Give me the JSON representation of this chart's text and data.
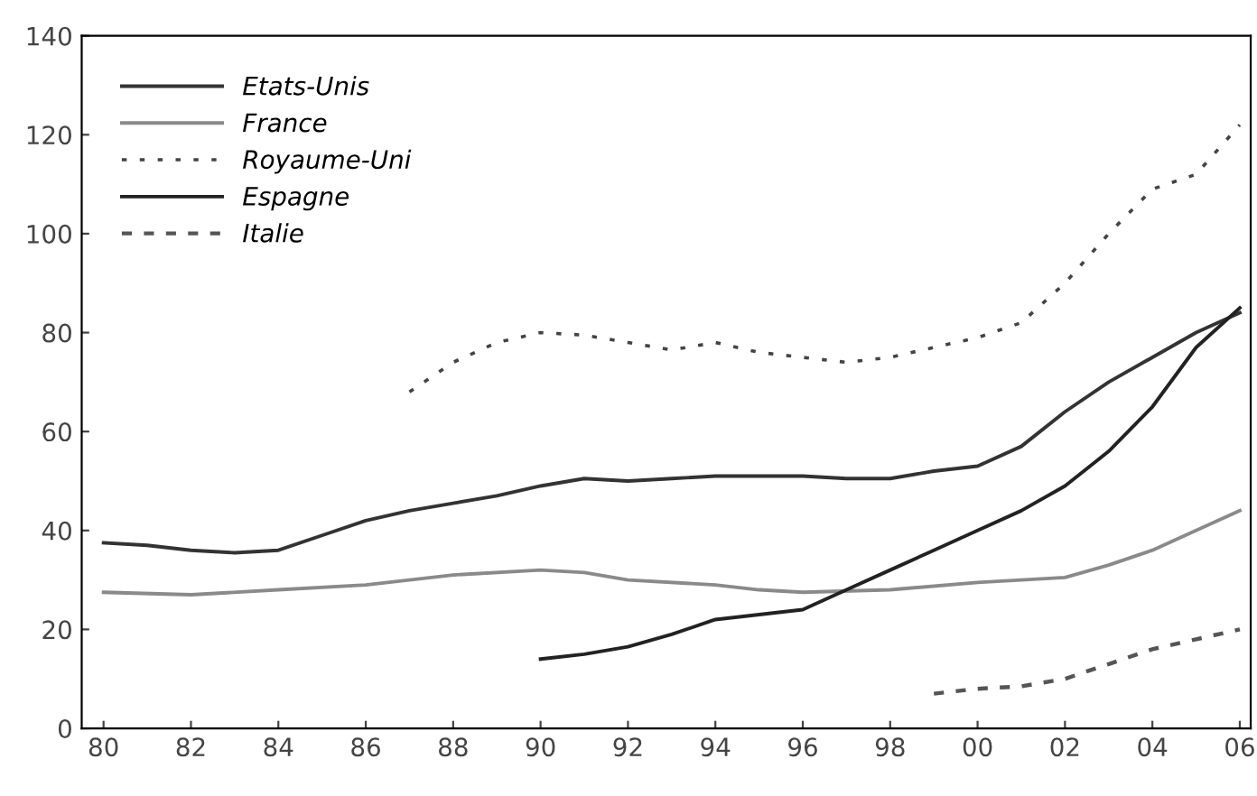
{
  "chart_data": {
    "type": "line",
    "x": [
      "1980",
      "1981",
      "1982",
      "1983",
      "1984",
      "1985",
      "1986",
      "1987",
      "1988",
      "1989",
      "1990",
      "1991",
      "1992",
      "1993",
      "1994",
      "1995",
      "1996",
      "1997",
      "1998",
      "1999",
      "2000",
      "2001",
      "2002",
      "2003",
      "2004",
      "2005",
      "2006"
    ],
    "series": [
      {
        "name": "Etats-Unis",
        "color": "#333333",
        "line_style": "solid",
        "values": [
          37.5,
          37,
          36,
          35.5,
          36,
          39,
          42,
          44,
          45.5,
          47,
          49,
          50.5,
          50,
          50.5,
          51,
          51,
          51,
          50.5,
          50.5,
          52,
          53,
          57,
          64,
          70,
          75,
          80,
          84
        ]
      },
      {
        "name": "France",
        "color": "#8a8a8a",
        "line_style": "solid",
        "x": [
          "1980",
          "1982",
          "1984",
          "1986",
          "1988",
          "1990",
          "1991",
          "1992",
          "1994",
          "1995",
          "1996",
          "1998",
          "2000",
          "2002",
          "2003",
          "2004",
          "2005",
          "2006"
        ],
        "values": [
          27.5,
          27,
          28,
          29,
          31,
          32,
          31.5,
          30,
          29,
          28,
          27.5,
          28,
          29.5,
          30.5,
          33,
          36,
          40,
          44
        ]
      },
      {
        "name": "Royaume-Uni",
        "color": "#444444",
        "line_style": "dotted",
        "x": [
          "1987",
          "1988",
          "1989",
          "1990",
          "1991",
          "1992",
          "1993",
          "1994",
          "1995",
          "1996",
          "1997",
          "1998",
          "1999",
          "2000",
          "2001",
          "2002",
          "2003",
          "2004",
          "2005",
          "2006"
        ],
        "values": [
          68,
          74,
          78,
          80,
          79.5,
          78,
          76.5,
          78,
          76,
          75,
          74,
          75,
          77,
          79,
          82,
          90,
          100,
          109,
          112,
          122
        ]
      },
      {
        "name": "Espagne",
        "color": "#222222",
        "line_style": "solid",
        "x": [
          "1990",
          "1991",
          "1992",
          "1993",
          "1994",
          "1995",
          "1996",
          "1997",
          "1998",
          "1999",
          "2000",
          "2001",
          "2002",
          "2003",
          "2004",
          "2005",
          "2006"
        ],
        "values": [
          14,
          15,
          16.5,
          19,
          22,
          23,
          24,
          28,
          32,
          36,
          40,
          44,
          49,
          56,
          65,
          77,
          85
        ]
      },
      {
        "name": "Italie",
        "color": "#555555",
        "line_style": "dashed",
        "x": [
          "1999",
          "2000",
          "2001",
          "2002",
          "2003",
          "2004",
          "2005",
          "2006"
        ],
        "values": [
          7,
          8,
          8.5,
          10,
          13,
          16,
          18,
          20
        ]
      }
    ],
    "xlim": [
      "1979-07",
      "2006-04"
    ],
    "ylim": [
      0,
      140
    ],
    "xticks": [
      {
        "value": "1980",
        "label": "80"
      },
      {
        "value": "1982",
        "label": "82"
      },
      {
        "value": "1984",
        "label": "84"
      },
      {
        "value": "1986",
        "label": "86"
      },
      {
        "value": "1988",
        "label": "88"
      },
      {
        "value": "1990",
        "label": "90"
      },
      {
        "value": "1992",
        "label": "92"
      },
      {
        "value": "1994",
        "label": "94"
      },
      {
        "value": "1996",
        "label": "96"
      },
      {
        "value": "1998",
        "label": "98"
      },
      {
        "value": "2000",
        "label": "00"
      },
      {
        "value": "2002",
        "label": "02"
      },
      {
        "value": "2004",
        "label": "04"
      },
      {
        "value": "2006",
        "label": "06"
      }
    ],
    "yticks": [
      0,
      20,
      40,
      60,
      80,
      100,
      120,
      140
    ],
    "legend": "top left",
    "grid": false
  }
}
